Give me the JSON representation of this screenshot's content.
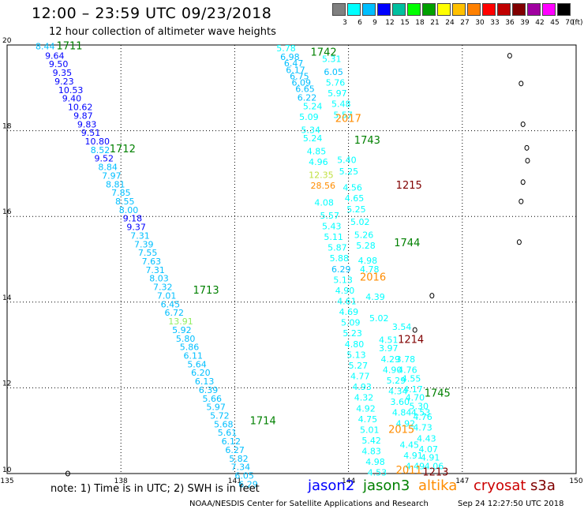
{
  "header": {
    "title": "12:00 – 23:59 UTC 09/23/2018",
    "subtitle": "12 hour collection of altimeter wave heights"
  },
  "colorbar": {
    "unit": "(ft)",
    "swatches": [
      "#808080",
      "#00ffff",
      "#00bfff",
      "#0000ff",
      "#00c0a0",
      "#00ff00",
      "#00a000",
      "#ffff00",
      "#ffc000",
      "#ff8000",
      "#ff0000",
      "#c00000",
      "#800000",
      "#a000a0",
      "#ff00ff",
      "#000000"
    ],
    "labels": [
      "3",
      "6",
      "9",
      "12",
      "15",
      "18",
      "21",
      "24",
      "27",
      "30",
      "33",
      "36",
      "39",
      "42",
      "45",
      "70"
    ]
  },
  "map": {
    "x_axis": {
      "ticks": [
        "135",
        "138",
        "141",
        "144",
        "147",
        "150"
      ]
    },
    "y_axis": {
      "ticks": [
        "20",
        "18",
        "16",
        "14",
        "12",
        "10"
      ]
    },
    "islands": [
      {
        "name": "island-1",
        "lon": 148.25,
        "lat": 19.75
      },
      {
        "name": "island-2",
        "lon": 148.55,
        "lat": 19.1
      },
      {
        "name": "island-3",
        "lon": 148.6,
        "lat": 18.15
      },
      {
        "name": "island-4",
        "lon": 148.7,
        "lat": 17.6
      },
      {
        "name": "island-5",
        "lon": 148.72,
        "lat": 17.3
      },
      {
        "name": "island-6",
        "lon": 148.6,
        "lat": 16.8
      },
      {
        "name": "island-7",
        "lon": 148.55,
        "lat": 16.35
      },
      {
        "name": "island-8",
        "lon": 148.5,
        "lat": 15.4
      },
      {
        "name": "island-9",
        "lon": 146.2,
        "lat": 14.15
      },
      {
        "name": "island-10",
        "lon": 145.75,
        "lat": 13.35
      },
      {
        "name": "island-11",
        "lon": 136.6,
        "lat": 10.0
      }
    ]
  },
  "track_labels": [
    {
      "text": "1711",
      "lon": 136.3,
      "lat": 19.9,
      "color": "#008000"
    },
    {
      "text": "1712",
      "lon": 137.7,
      "lat": 17.5,
      "color": "#008000"
    },
    {
      "text": "1713",
      "lon": 139.9,
      "lat": 14.2,
      "color": "#008000"
    },
    {
      "text": "1714",
      "lon": 141.4,
      "lat": 11.15,
      "color": "#008000"
    },
    {
      "text": "1742",
      "lon": 143.0,
      "lat": 19.75,
      "color": "#008000"
    },
    {
      "text": "2017",
      "lon": 143.65,
      "lat": 18.2,
      "color": "#ff8c00"
    },
    {
      "text": "1743",
      "lon": 144.15,
      "lat": 17.7,
      "color": "#008000"
    },
    {
      "text": "1215",
      "lon": 145.25,
      "lat": 16.65,
      "color": "#800000"
    },
    {
      "text": "1744",
      "lon": 145.2,
      "lat": 15.3,
      "color": "#008000"
    },
    {
      "text": "2016",
      "lon": 144.3,
      "lat": 14.5,
      "color": "#ff8c00"
    },
    {
      "text": "1214",
      "lon": 145.3,
      "lat": 13.05,
      "color": "#800000"
    },
    {
      "text": "1745",
      "lon": 146.0,
      "lat": 11.8,
      "color": "#008000"
    },
    {
      "text": "2015",
      "lon": 145.05,
      "lat": 10.95,
      "color": "#ff8c00"
    },
    {
      "text": "2011",
      "lon": 145.25,
      "lat": 10.0,
      "color": "#ff8c00"
    },
    {
      "text": "1213",
      "lon": 145.95,
      "lat": 9.95,
      "color": "#800000"
    }
  ],
  "swh_labels": [
    {
      "t": "8.44",
      "lon": 135.75,
      "lat": 19.9,
      "c": "#00bfff"
    },
    {
      "t": "9.64",
      "lon": 136.0,
      "lat": 19.68,
      "c": "#0000ff"
    },
    {
      "t": "9.50",
      "lon": 136.1,
      "lat": 19.48,
      "c": "#0000ff"
    },
    {
      "t": "9.35",
      "lon": 136.2,
      "lat": 19.28,
      "c": "#0000ff"
    },
    {
      "t": "9.23",
      "lon": 136.25,
      "lat": 19.08,
      "c": "#0000ff"
    },
    {
      "t": "10.53",
      "lon": 136.35,
      "lat": 18.88,
      "c": "#0000ff"
    },
    {
      "t": "9.40",
      "lon": 136.45,
      "lat": 18.68,
      "c": "#0000ff"
    },
    {
      "t": "10.62",
      "lon": 136.6,
      "lat": 18.48,
      "c": "#0000ff"
    },
    {
      "t": "9.87",
      "lon": 136.75,
      "lat": 18.28,
      "c": "#0000ff"
    },
    {
      "t": "9.83",
      "lon": 136.85,
      "lat": 18.08,
      "c": "#0000ff"
    },
    {
      "t": "9.51",
      "lon": 136.95,
      "lat": 17.88,
      "c": "#0000ff"
    },
    {
      "t": "10.80",
      "lon": 137.05,
      "lat": 17.68,
      "c": "#0000ff"
    },
    {
      "t": "8.52",
      "lon": 137.2,
      "lat": 17.48,
      "c": "#00bfff"
    },
    {
      "t": "9.52",
      "lon": 137.3,
      "lat": 17.28,
      "c": "#0000ff"
    },
    {
      "t": "8.84",
      "lon": 137.4,
      "lat": 17.08,
      "c": "#00bfff"
    },
    {
      "t": "7.97",
      "lon": 137.5,
      "lat": 16.88,
      "c": "#00bfff"
    },
    {
      "t": "8.81",
      "lon": 137.6,
      "lat": 16.68,
      "c": "#00bfff"
    },
    {
      "t": "7.85",
      "lon": 137.75,
      "lat": 16.48,
      "c": "#00bfff"
    },
    {
      "t": "8.55",
      "lon": 137.85,
      "lat": 16.28,
      "c": "#00bfff"
    },
    {
      "t": "8.00",
      "lon": 137.95,
      "lat": 16.08,
      "c": "#00bfff"
    },
    {
      "t": "9.18",
      "lon": 138.05,
      "lat": 15.88,
      "c": "#0000ff"
    },
    {
      "t": "9.37",
      "lon": 138.15,
      "lat": 15.68,
      "c": "#0000ff"
    },
    {
      "t": "7.31",
      "lon": 138.25,
      "lat": 15.48,
      "c": "#00bfff"
    },
    {
      "t": "7.39",
      "lon": 138.35,
      "lat": 15.28,
      "c": "#00bfff"
    },
    {
      "t": "7.55",
      "lon": 138.45,
      "lat": 15.08,
      "c": "#00bfff"
    },
    {
      "t": "7.63",
      "lon": 138.55,
      "lat": 14.88,
      "c": "#00bfff"
    },
    {
      "t": "7.31",
      "lon": 138.65,
      "lat": 14.68,
      "c": "#00bfff"
    },
    {
      "t": "8.03",
      "lon": 138.75,
      "lat": 14.48,
      "c": "#00bfff"
    },
    {
      "t": "7.32",
      "lon": 138.85,
      "lat": 14.28,
      "c": "#00bfff"
    },
    {
      "t": "7.01",
      "lon": 138.95,
      "lat": 14.08,
      "c": "#00bfff"
    },
    {
      "t": "6.45",
      "lon": 139.05,
      "lat": 13.88,
      "c": "#00bfff"
    },
    {
      "t": "6.72",
      "lon": 139.15,
      "lat": 13.68,
      "c": "#00bfff"
    },
    {
      "t": "13.91",
      "lon": 139.25,
      "lat": 13.48,
      "c": "#90ee60"
    },
    {
      "t": "5.92",
      "lon": 139.35,
      "lat": 13.28,
      "c": "#00bfff"
    },
    {
      "t": "5.80",
      "lon": 139.45,
      "lat": 13.08,
      "c": "#00bfff"
    },
    {
      "t": "5.86",
      "lon": 139.55,
      "lat": 12.88,
      "c": "#00bfff"
    },
    {
      "t": "6.11",
      "lon": 139.65,
      "lat": 12.68,
      "c": "#00bfff"
    },
    {
      "t": "5.64",
      "lon": 139.75,
      "lat": 12.48,
      "c": "#00bfff"
    },
    {
      "t": "6.20",
      "lon": 139.85,
      "lat": 12.28,
      "c": "#00bfff"
    },
    {
      "t": "6.13",
      "lon": 139.95,
      "lat": 12.08,
      "c": "#00bfff"
    },
    {
      "t": "6.39",
      "lon": 140.05,
      "lat": 11.88,
      "c": "#00bfff"
    },
    {
      "t": "5.66",
      "lon": 140.15,
      "lat": 11.68,
      "c": "#00bfff"
    },
    {
      "t": "5.97",
      "lon": 140.25,
      "lat": 11.48,
      "c": "#00bfff"
    },
    {
      "t": "5.72",
      "lon": 140.35,
      "lat": 11.28,
      "c": "#00bfff"
    },
    {
      "t": "5.68",
      "lon": 140.45,
      "lat": 11.08,
      "c": "#00bfff"
    },
    {
      "t": "5.61",
      "lon": 140.55,
      "lat": 10.88,
      "c": "#00bfff"
    },
    {
      "t": "6.12",
      "lon": 140.65,
      "lat": 10.68,
      "c": "#00bfff"
    },
    {
      "t": "6.27",
      "lon": 140.75,
      "lat": 10.48,
      "c": "#00bfff"
    },
    {
      "t": "5.82",
      "lon": 140.85,
      "lat": 10.28,
      "c": "#00bfff"
    },
    {
      "t": "7.34",
      "lon": 140.9,
      "lat": 10.08,
      "c": "#00bfff"
    },
    {
      "t": "6.05",
      "lon": 141.0,
      "lat": 9.88,
      "c": "#00bfff"
    },
    {
      "t": "6.29",
      "lon": 141.1,
      "lat": 9.68,
      "c": "#00bfff"
    },
    {
      "t": "5.78",
      "lon": 142.1,
      "lat": 19.85,
      "c": "#00ffff"
    },
    {
      "t": "6.98",
      "lon": 142.2,
      "lat": 19.65,
      "c": "#00bfff"
    },
    {
      "t": "6.47",
      "lon": 142.3,
      "lat": 19.5,
      "c": "#00bfff"
    },
    {
      "t": "6.17",
      "lon": 142.35,
      "lat": 19.35,
      "c": "#00bfff"
    },
    {
      "t": "6.75",
      "lon": 142.45,
      "lat": 19.2,
      "c": "#00bfff"
    },
    {
      "t": "6.09",
      "lon": 142.5,
      "lat": 19.05,
      "c": "#00bfff"
    },
    {
      "t": "6.65",
      "lon": 142.6,
      "lat": 18.9,
      "c": "#00bfff"
    },
    {
      "t": "6.22",
      "lon": 142.65,
      "lat": 18.7,
      "c": "#00bfff"
    },
    {
      "t": "5.24",
      "lon": 142.8,
      "lat": 18.5,
      "c": "#00ffff"
    },
    {
      "t": "5.09",
      "lon": 142.7,
      "lat": 18.25,
      "c": "#00ffff"
    },
    {
      "t": "5.34",
      "lon": 142.75,
      "lat": 17.95,
      "c": "#00ffff"
    },
    {
      "t": "5.24",
      "lon": 142.8,
      "lat": 17.75,
      "c": "#00ffff"
    },
    {
      "t": "4.85",
      "lon": 142.9,
      "lat": 17.45,
      "c": "#00ffff"
    },
    {
      "t": "4.96",
      "lon": 142.95,
      "lat": 17.2,
      "c": "#00ffff"
    },
    {
      "t": "12.35",
      "lon": 142.95,
      "lat": 16.9,
      "c": "#c0e040"
    },
    {
      "t": "28.56",
      "lon": 143.0,
      "lat": 16.65,
      "c": "#ff8c00"
    },
    {
      "t": "4.08",
      "lon": 143.1,
      "lat": 16.25,
      "c": "#00ffff"
    },
    {
      "t": "5.57",
      "lon": 143.25,
      "lat": 15.95,
      "c": "#00ffff"
    },
    {
      "t": "5.43",
      "lon": 143.3,
      "lat": 15.7,
      "c": "#00ffff"
    },
    {
      "t": "5.11",
      "lon": 143.35,
      "lat": 15.45,
      "c": "#00ffff"
    },
    {
      "t": "5.87",
      "lon": 143.45,
      "lat": 15.2,
      "c": "#00ffff"
    },
    {
      "t": "5.88",
      "lon": 143.5,
      "lat": 14.95,
      "c": "#00ffff"
    },
    {
      "t": "6.29",
      "lon": 143.55,
      "lat": 14.7,
      "c": "#00bfff"
    },
    {
      "t": "5.13",
      "lon": 143.6,
      "lat": 14.45,
      "c": "#00ffff"
    },
    {
      "t": "4.90",
      "lon": 143.65,
      "lat": 14.2,
      "c": "#00ffff"
    },
    {
      "t": "4.61",
      "lon": 143.7,
      "lat": 13.95,
      "c": "#00ffff"
    },
    {
      "t": "4.69",
      "lon": 143.75,
      "lat": 13.7,
      "c": "#00ffff"
    },
    {
      "t": "5.09",
      "lon": 143.8,
      "lat": 13.45,
      "c": "#00ffff"
    },
    {
      "t": "5.23",
      "lon": 143.85,
      "lat": 13.2,
      "c": "#00ffff"
    },
    {
      "t": "4.80",
      "lon": 143.9,
      "lat": 12.95,
      "c": "#00ffff"
    },
    {
      "t": "5.13",
      "lon": 143.95,
      "lat": 12.7,
      "c": "#00ffff"
    },
    {
      "t": "5.27",
      "lon": 144.0,
      "lat": 12.45,
      "c": "#00ffff"
    },
    {
      "t": "4.77",
      "lon": 144.05,
      "lat": 12.2,
      "c": "#00ffff"
    },
    {
      "t": "4.93",
      "lon": 144.1,
      "lat": 11.95,
      "c": "#00ffff"
    },
    {
      "t": "4.32",
      "lon": 144.15,
      "lat": 11.7,
      "c": "#00ffff"
    },
    {
      "t": "4.92",
      "lon": 144.2,
      "lat": 11.45,
      "c": "#00ffff"
    },
    {
      "t": "4.75",
      "lon": 144.25,
      "lat": 11.2,
      "c": "#00ffff"
    },
    {
      "t": "5.01",
      "lon": 144.3,
      "lat": 10.95,
      "c": "#00ffff"
    },
    {
      "t": "4.83",
      "lon": 144.35,
      "lat": 10.45,
      "c": "#00ffff"
    },
    {
      "t": "4.98",
      "lon": 144.45,
      "lat": 10.2,
      "c": "#00ffff"
    },
    {
      "t": "4.53",
      "lon": 144.5,
      "lat": 9.95,
      "c": "#00ffff"
    },
    {
      "t": "5.42",
      "lon": 144.35,
      "lat": 10.7,
      "c": "#00ffff"
    },
    {
      "t": "5.31",
      "lon": 143.3,
      "lat": 19.6,
      "c": "#00ffff"
    },
    {
      "t": "6.05",
      "lon": 143.35,
      "lat": 19.3,
      "c": "#00bfff"
    },
    {
      "t": "5.76",
      "lon": 143.4,
      "lat": 19.05,
      "c": "#00ffff"
    },
    {
      "t": "5.97",
      "lon": 143.45,
      "lat": 18.8,
      "c": "#00ffff"
    },
    {
      "t": "5.48",
      "lon": 143.55,
      "lat": 18.55,
      "c": "#00ffff"
    },
    {
      "t": "5.57",
      "lon": 143.6,
      "lat": 18.3,
      "c": "#00ffff"
    },
    {
      "t": "5.40",
      "lon": 143.7,
      "lat": 17.25,
      "c": "#00ffff"
    },
    {
      "t": "5.25",
      "lon": 143.75,
      "lat": 16.98,
      "c": "#00ffff"
    },
    {
      "t": "4.56",
      "lon": 143.85,
      "lat": 16.6,
      "c": "#00ffff"
    },
    {
      "t": "4.65",
      "lon": 143.9,
      "lat": 16.35,
      "c": "#00ffff"
    },
    {
      "t": "5.25",
      "lon": 143.95,
      "lat": 16.1,
      "c": "#00ffff"
    },
    {
      "t": "5.02",
      "lon": 144.05,
      "lat": 15.8,
      "c": "#00ffff"
    },
    {
      "t": "5.26",
      "lon": 144.15,
      "lat": 15.5,
      "c": "#00ffff"
    },
    {
      "t": "5.28",
      "lon": 144.2,
      "lat": 15.25,
      "c": "#00ffff"
    },
    {
      "t": "4.98",
      "lon": 144.25,
      "lat": 14.9,
      "c": "#00ffff"
    },
    {
      "t": "4.78",
      "lon": 144.3,
      "lat": 14.7,
      "c": "#00ffff"
    },
    {
      "t": "4.39",
      "lon": 144.45,
      "lat": 14.05,
      "c": "#00ffff"
    },
    {
      "t": "5.02",
      "lon": 144.55,
      "lat": 13.55,
      "c": "#00ffff"
    },
    {
      "t": "4.51",
      "lon": 144.8,
      "lat": 13.05,
      "c": "#00ffff"
    },
    {
      "t": "3.97",
      "lon": 144.8,
      "lat": 12.85,
      "c": "#00ffff"
    },
    {
      "t": "4.29",
      "lon": 144.85,
      "lat": 12.6,
      "c": "#00ffff"
    },
    {
      "t": "4.90",
      "lon": 144.9,
      "lat": 12.35,
      "c": "#00ffff"
    },
    {
      "t": "5.29",
      "lon": 145.0,
      "lat": 12.1,
      "c": "#00ffff"
    },
    {
      "t": "4.34",
      "lon": 145.05,
      "lat": 11.85,
      "c": "#00ffff"
    },
    {
      "t": "3.60",
      "lon": 145.1,
      "lat": 11.6,
      "c": "#00ffff"
    },
    {
      "t": "4.84",
      "lon": 145.15,
      "lat": 11.35,
      "c": "#00ffff"
    },
    {
      "t": "4.92",
      "lon": 145.25,
      "lat": 11.1,
      "c": "#00ffff"
    },
    {
      "t": "4.45",
      "lon": 145.35,
      "lat": 10.6,
      "c": "#00ffff"
    },
    {
      "t": "4.91",
      "lon": 145.45,
      "lat": 10.35,
      "c": "#00ffff"
    },
    {
      "t": "4.49",
      "lon": 145.5,
      "lat": 10.1,
      "c": "#00ffff"
    },
    {
      "t": "3.78",
      "lon": 145.25,
      "lat": 12.6,
      "c": "#00ffff"
    },
    {
      "t": "4.76",
      "lon": 145.3,
      "lat": 12.35,
      "c": "#00ffff"
    },
    {
      "t": "4.55",
      "lon": 145.4,
      "lat": 12.15,
      "c": "#00ffff"
    },
    {
      "t": "4.17",
      "lon": 145.45,
      "lat": 11.9,
      "c": "#00ffff"
    },
    {
      "t": "4.70",
      "lon": 145.5,
      "lat": 11.7,
      "c": "#00ffff"
    },
    {
      "t": "5.30",
      "lon": 145.6,
      "lat": 11.5,
      "c": "#00ffff"
    },
    {
      "t": "4.76",
      "lon": 145.7,
      "lat": 11.25,
      "c": "#00ffff"
    },
    {
      "t": "4.53",
      "lon": 145.65,
      "lat": 11.35,
      "c": "#00ffff"
    },
    {
      "t": "4.73",
      "lon": 145.7,
      "lat": 11.0,
      "c": "#00ffff"
    },
    {
      "t": "4.43",
      "lon": 145.8,
      "lat": 10.75,
      "c": "#00ffff"
    },
    {
      "t": "4.07",
      "lon": 145.85,
      "lat": 10.5,
      "c": "#00ffff"
    },
    {
      "t": "4.91",
      "lon": 145.9,
      "lat": 10.3,
      "c": "#00ffff"
    },
    {
      "t": "4.06",
      "lon": 146.0,
      "lat": 10.1,
      "c": "#00ffff"
    },
    {
      "t": "3.54",
      "lon": 145.15,
      "lat": 13.35,
      "c": "#00ffff"
    }
  ],
  "footer": {
    "note": "note: 1) Time is in UTC; 2) SWH is in feet",
    "sats": [
      {
        "label": "jason2",
        "color": "#0000ff"
      },
      {
        "label": "jason3",
        "color": "#008000"
      },
      {
        "label": "altika",
        "color": "#ff8c00"
      },
      {
        "label": "cryosat",
        "color": "#cc0000"
      },
      {
        "label": "s3a",
        "color": "#800000"
      }
    ],
    "credit": "NOAA/NESDIS Center for Satellite Applications and Research",
    "timestamp": "Sep 24 12:27:50 UTC 2018"
  }
}
